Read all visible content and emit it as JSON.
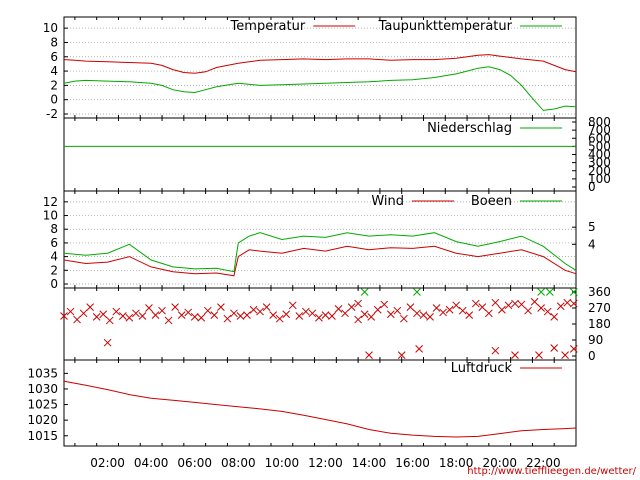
{
  "chart_data": [
    {
      "type": "line",
      "panel": "temperature",
      "ylim": [
        -2,
        11
      ],
      "yticks": [
        "-2",
        "0",
        "2",
        "4",
        "6",
        "8",
        "10"
      ],
      "grid": true,
      "legend_position": "top-right",
      "series": [
        {
          "name": "Temperatur",
          "color": "#cc0000",
          "x": [
            0.0,
            0.5,
            1.0,
            2.0,
            3.0,
            4.0,
            4.5,
            5.0,
            5.5,
            6.0,
            6.5,
            7.0,
            8.0,
            9.0,
            10.0,
            11.0,
            12.0,
            13.0,
            14.0,
            15.0,
            16.0,
            17.0,
            18.0,
            18.5,
            19.0,
            19.5,
            20.0,
            20.5,
            21.0,
            22.0,
            22.5,
            23.0,
            23.5
          ],
          "values": [
            5.6,
            5.5,
            5.4,
            5.3,
            5.2,
            5.1,
            4.8,
            4.2,
            3.8,
            3.7,
            3.9,
            4.5,
            5.1,
            5.5,
            5.6,
            5.7,
            5.6,
            5.7,
            5.7,
            5.5,
            5.6,
            5.6,
            5.8,
            6.0,
            6.2,
            6.3,
            6.1,
            5.9,
            5.7,
            5.4,
            4.8,
            4.2,
            3.9
          ]
        },
        {
          "name": "Taupunkttemperatur",
          "color": "#00aa00",
          "x": [
            0.0,
            0.5,
            1.0,
            2.0,
            3.0,
            4.0,
            4.5,
            5.0,
            5.5,
            6.0,
            6.5,
            7.0,
            8.0,
            9.0,
            10.0,
            11.0,
            12.0,
            13.0,
            14.0,
            15.0,
            16.0,
            17.0,
            18.0,
            18.5,
            19.0,
            19.5,
            20.0,
            20.5,
            21.0,
            21.5,
            22.0,
            22.5,
            23.0,
            23.5
          ],
          "values": [
            2.3,
            2.6,
            2.7,
            2.6,
            2.5,
            2.3,
            2.0,
            1.4,
            1.1,
            1.0,
            1.4,
            1.8,
            2.3,
            2.0,
            2.1,
            2.2,
            2.3,
            2.4,
            2.5,
            2.7,
            2.8,
            3.1,
            3.6,
            4.0,
            4.4,
            4.6,
            4.2,
            3.4,
            2.0,
            0.2,
            -1.5,
            -1.3,
            -0.9,
            -1.0
          ]
        }
      ]
    },
    {
      "type": "line",
      "panel": "precipitation",
      "ylim": [
        0,
        800
      ],
      "yticks_right": [
        "0",
        "100",
        "200",
        "300",
        "400",
        "500",
        "600",
        "700",
        "800"
      ],
      "legend_position": "top-right",
      "series": [
        {
          "name": "Niederschlag",
          "color": "#00aa00",
          "x": [
            0,
            23.5
          ],
          "values": [
            500,
            500
          ]
        }
      ]
    },
    {
      "type": "line",
      "panel": "wind",
      "ylim": [
        0,
        13
      ],
      "yticks": [
        "0",
        "2",
        "4",
        "6",
        "8",
        "10",
        "12"
      ],
      "yticks_right": [
        "4",
        "5"
      ],
      "grid": true,
      "legend_position": "top-right",
      "series": [
        {
          "name": "Wind",
          "color": "#cc0000",
          "x": [
            0,
            1,
            2,
            3,
            4,
            5,
            6,
            7,
            7.8,
            8,
            8.5,
            9,
            10,
            11,
            12,
            13,
            14,
            15,
            16,
            17,
            18,
            19,
            20,
            21,
            22,
            23,
            23.5
          ],
          "values": [
            3.5,
            3.0,
            3.2,
            4.0,
            2.5,
            1.8,
            1.5,
            1.6,
            1.2,
            4.0,
            5.0,
            4.8,
            4.5,
            5.2,
            4.8,
            5.5,
            5.0,
            5.3,
            5.2,
            5.5,
            4.5,
            4.0,
            4.5,
            5.0,
            4.0,
            2.0,
            1.5
          ]
        },
        {
          "name": "Boeen",
          "color": "#00aa00",
          "x": [
            0,
            1,
            2,
            3,
            4,
            5,
            6,
            7,
            7.8,
            8,
            8.5,
            9,
            10,
            11,
            12,
            13,
            14,
            15,
            16,
            17,
            18,
            19,
            20,
            21,
            22,
            23,
            23.5
          ],
          "values": [
            4.5,
            4.2,
            4.5,
            5.8,
            3.5,
            2.5,
            2.2,
            2.3,
            1.8,
            6.0,
            7.0,
            7.5,
            6.5,
            7.0,
            6.8,
            7.5,
            7.0,
            7.2,
            7.0,
            7.5,
            6.2,
            5.5,
            6.2,
            7.0,
            5.5,
            3.0,
            2.0
          ]
        }
      ]
    },
    {
      "type": "scatter",
      "panel": "wind-direction",
      "ylim": [
        0,
        360
      ],
      "yticks_right": [
        "0",
        "90",
        "180",
        "270",
        "360"
      ],
      "series": [
        {
          "name": "",
          "color": "#cc0000",
          "marker": "x",
          "x": [
            0.0,
            0.3,
            0.6,
            0.9,
            1.2,
            1.5,
            1.8,
            2.1,
            2.4,
            2.7,
            3.0,
            3.3,
            3.6,
            3.9,
            4.2,
            4.5,
            4.8,
            5.1,
            5.4,
            5.7,
            6.0,
            6.3,
            6.6,
            6.9,
            7.2,
            7.5,
            7.8,
            8.1,
            8.4,
            8.7,
            9.0,
            9.3,
            9.6,
            9.9,
            10.2,
            10.5,
            10.8,
            11.1,
            11.4,
            11.7,
            12.0,
            12.3,
            12.6,
            12.9,
            13.2,
            13.5,
            13.8,
            14.1,
            14.4,
            14.7,
            15.0,
            15.3,
            15.6,
            15.9,
            16.2,
            16.5,
            16.8,
            17.1,
            17.4,
            17.7,
            18.0,
            18.3,
            18.6,
            18.9,
            19.2,
            19.5,
            19.8,
            20.1,
            20.4,
            20.7,
            21.0,
            21.3,
            21.6,
            21.9,
            22.2,
            22.5,
            22.8,
            23.1,
            23.4,
            2.0,
            13.5,
            14.0,
            15.5,
            16.3,
            19.8,
            20.7,
            21.8,
            22.5,
            23.0,
            23.4
          ],
          "values": [
            225,
            250,
            205,
            240,
            275,
            220,
            235,
            200,
            250,
            225,
            215,
            240,
            225,
            270,
            230,
            255,
            200,
            275,
            230,
            245,
            220,
            215,
            255,
            230,
            275,
            210,
            240,
            225,
            230,
            260,
            250,
            275,
            230,
            210,
            235,
            285,
            225,
            250,
            240,
            215,
            230,
            225,
            265,
            240,
            275,
            205,
            235,
            220,
            260,
            290,
            235,
            255,
            210,
            275,
            240,
            230,
            220,
            270,
            245,
            260,
            285,
            255,
            230,
            295,
            275,
            240,
            300,
            260,
            285,
            295,
            290,
            255,
            305,
            270,
            250,
            220,
            280,
            300,
            295,
            75,
            295,
            5,
            5,
            40,
            30,
            5,
            5,
            45,
            5,
            40
          ]
        },
        {
          "name": "",
          "color": "#00aa00",
          "marker": "x",
          "x": [
            13.8,
            16.2,
            21.9,
            22.3,
            23.4
          ],
          "values": [
            360,
            360,
            360,
            360,
            360
          ]
        }
      ]
    },
    {
      "type": "line",
      "panel": "pressure",
      "ylim": [
        1013,
        1038
      ],
      "yticks": [
        "1015",
        "1020",
        "1025",
        "1030",
        "1035"
      ],
      "legend_position": "top-right",
      "series": [
        {
          "name": "Luftdruck",
          "color": "#cc0000",
          "x": [
            0,
            1,
            2,
            3,
            4,
            5,
            6,
            7,
            8,
            9,
            10,
            11,
            12,
            13,
            14,
            15,
            16,
            17,
            18,
            19,
            20,
            21,
            22,
            23,
            23.5
          ],
          "values": [
            1032.5,
            1031.2,
            1029.8,
            1028.2,
            1027.0,
            1026.4,
            1025.7,
            1025.0,
            1024.3,
            1023.6,
            1022.8,
            1021.6,
            1020.2,
            1018.8,
            1017.0,
            1015.8,
            1015.2,
            1014.8,
            1014.6,
            1014.8,
            1015.7,
            1016.6,
            1017.0,
            1017.3,
            1017.5
          ]
        }
      ]
    }
  ],
  "x_axis": {
    "tick_labels": [
      "02:00",
      "04:00",
      "06:00",
      "08:00",
      "10:00",
      "12:00",
      "14:00",
      "16:00",
      "18:00",
      "20:00",
      "22:00"
    ]
  },
  "footer": {
    "url": "http://www.tiefflieegen.de/wetter/"
  }
}
